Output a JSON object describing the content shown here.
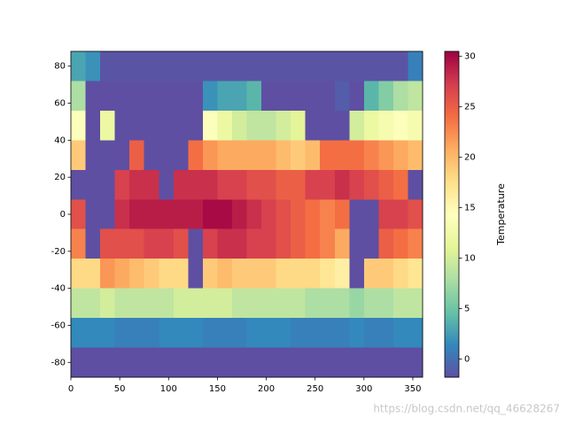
{
  "chart_data": {
    "type": "heatmap",
    "xlim": [
      0,
      360
    ],
    "ylim": [
      -88,
      88
    ],
    "xticks": [
      0,
      50,
      100,
      150,
      200,
      250,
      300,
      350
    ],
    "yticks": [
      -80,
      -60,
      -40,
      -20,
      0,
      20,
      40,
      60,
      80
    ],
    "colormap": [
      "#5e4fa2",
      "#3288bd",
      "#66c2a5",
      "#abdda4",
      "#e6f598",
      "#ffffbf",
      "#fee08b",
      "#fdae61",
      "#f46d43",
      "#d53e4f",
      "#9e0142"
    ],
    "values": [
      [
        3,
        2,
        -1.5,
        -1.5,
        -1.5,
        -1.5,
        -1.5,
        -1.5,
        -1.5,
        -1.5,
        -1.5,
        -1.5,
        -1.5,
        -1.5,
        -1.5,
        -1.5,
        -1.5,
        -1.5,
        -1.5,
        -1.5,
        -1.5,
        -1.5,
        -1.5,
        1
      ],
      [
        8,
        -1.8,
        -1.8,
        -1.8,
        -1.8,
        -1.8,
        -1.8,
        -1.8,
        -1.8,
        2,
        3,
        3,
        4,
        -1.8,
        -1.8,
        -1.8,
        -1.8,
        -1.8,
        -1,
        -1.8,
        4,
        6,
        8,
        9
      ],
      [
        14,
        -1.8,
        12,
        -1.8,
        -1.8,
        -1.8,
        -1.8,
        -1.8,
        -1.8,
        14,
        12,
        10,
        9,
        9,
        10,
        11,
        -1.8,
        -1.8,
        -1.8,
        10,
        12,
        13,
        14,
        13
      ],
      [
        19,
        -1.8,
        -1.8,
        -1.8,
        25,
        -1.8,
        -1.8,
        -1.8,
        24,
        22,
        21,
        21,
        21,
        21,
        20,
        19,
        20,
        24,
        24,
        24,
        23,
        22,
        21,
        20
      ],
      [
        -1.8,
        -1.8,
        -1.8,
        27,
        28,
        28,
        -1.8,
        28,
        28,
        28,
        27,
        27,
        26,
        26,
        25,
        25,
        27,
        27,
        28,
        27,
        26,
        25,
        24,
        -1.8
      ],
      [
        26,
        -1.8,
        -1.8,
        28,
        29,
        29,
        29,
        29,
        29,
        30,
        30,
        29,
        28,
        27,
        26,
        25,
        24,
        23,
        24,
        -1.8,
        -1.8,
        27,
        27,
        26
      ],
      [
        23,
        -1.8,
        26,
        26,
        26,
        27,
        27,
        26,
        -1.8,
        27,
        28,
        28,
        27,
        27,
        26,
        25,
        24,
        23,
        21,
        -1.8,
        -1.8,
        25,
        24,
        23
      ],
      [
        18,
        18,
        22,
        21,
        20,
        19,
        18,
        18,
        -1.8,
        19,
        20,
        19,
        19,
        19,
        18,
        18,
        18,
        17,
        16,
        -1.8,
        19,
        19,
        18,
        17
      ],
      [
        9,
        9,
        10,
        9,
        9,
        9,
        9,
        10,
        10,
        10,
        10,
        9,
        9,
        9,
        9,
        9,
        8,
        8,
        8,
        7,
        8,
        8,
        9,
        9
      ],
      [
        1.5,
        1.5,
        1.5,
        1,
        1,
        1,
        1.5,
        1.5,
        1.5,
        1,
        1,
        1,
        1.5,
        1.5,
        1.5,
        1,
        1,
        1,
        1,
        1.5,
        1,
        1,
        1.5,
        1.5
      ],
      [
        -1.8,
        -1.8,
        -1.8,
        -1.8,
        -1.8,
        -1.8,
        -1.8,
        -1.8,
        -1.8,
        -1.8,
        -1.8,
        -1.8,
        -1.8,
        -1.8,
        -1.8,
        -1.8,
        -1.8,
        -1.8,
        -1.8,
        -1.8,
        -1.8,
        -1.8,
        -1.8,
        -1.8
      ]
    ],
    "colorbar": {
      "label": "Temperature",
      "lim": [
        -1.8,
        30.5
      ],
      "ticks": [
        0,
        5,
        10,
        15,
        20,
        25,
        30
      ]
    },
    "watermark": "https://blog.csdn.net/qq_46628267"
  }
}
